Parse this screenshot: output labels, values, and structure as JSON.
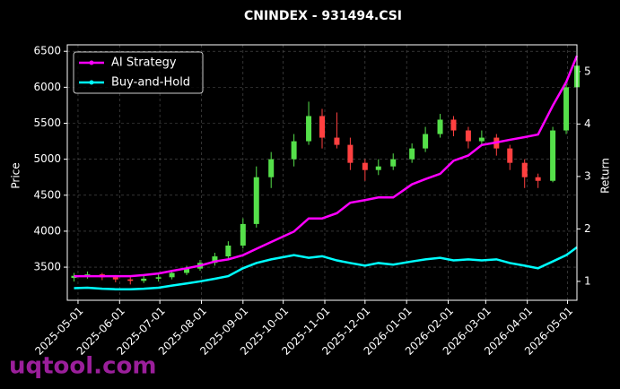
{
  "chart_data": {
    "type": "candlestick",
    "title": "CNINDEX - 931494.CSI",
    "ylabel": "Price",
    "y2label": "Return",
    "watermark": "uqtool.com",
    "x": [
      "2025-04-28",
      "2025-05-08",
      "2025-05-19",
      "2025-05-29",
      "2025-06-09",
      "2025-06-19",
      "2025-06-30",
      "2025-07-10",
      "2025-07-21",
      "2025-07-31",
      "2025-08-11",
      "2025-08-21",
      "2025-09-01",
      "2025-09-11",
      "2025-09-22",
      "2025-10-09",
      "2025-10-20",
      "2025-10-30",
      "2025-11-10",
      "2025-11-20",
      "2025-12-01",
      "2025-12-11",
      "2025-12-22",
      "2026-01-05",
      "2026-01-15",
      "2026-01-26",
      "2026-02-05",
      "2026-02-16",
      "2026-02-26",
      "2026-03-09",
      "2026-03-19",
      "2026-03-30",
      "2026-04-09",
      "2026-04-20",
      "2026-04-30",
      "2026-05-08"
    ],
    "open": [
      3350,
      3380,
      3400,
      3360,
      3330,
      3310,
      3340,
      3360,
      3420,
      3480,
      3560,
      3650,
      3800,
      4100,
      4750,
      5000,
      5250,
      5600,
      5300,
      5200,
      4950,
      4850,
      4900,
      5000,
      5150,
      5350,
      5550,
      5400,
      5250,
      5300,
      5150,
      4950,
      4750,
      4700,
      5400,
      6000
    ],
    "high": [
      3420,
      3440,
      3420,
      3390,
      3360,
      3380,
      3400,
      3450,
      3520,
      3600,
      3700,
      3860,
      4180,
      4900,
      5100,
      5350,
      5800,
      5700,
      5650,
      5300,
      5000,
      5000,
      5080,
      5220,
      5450,
      5630,
      5600,
      5450,
      5400,
      5350,
      5200,
      5000,
      4800,
      5450,
      6050,
      6400
    ],
    "low": [
      3300,
      3340,
      3320,
      3290,
      3260,
      3280,
      3300,
      3330,
      3390,
      3450,
      3520,
      3620,
      3760,
      4050,
      4600,
      4900,
      5200,
      5150,
      5150,
      4850,
      4700,
      4780,
      4850,
      4950,
      5100,
      5300,
      5320,
      5150,
      5200,
      5050,
      4850,
      4600,
      4600,
      4680,
      5350,
      5950
    ],
    "close": [
      3380,
      3400,
      3360,
      3330,
      3310,
      3340,
      3360,
      3420,
      3480,
      3560,
      3650,
      3800,
      4100,
      4750,
      5000,
      5250,
      5600,
      5300,
      5200,
      4950,
      4850,
      4900,
      5000,
      5150,
      5350,
      5550,
      5400,
      5250,
      5300,
      5150,
      4950,
      4750,
      4700,
      5400,
      6000,
      6300
    ],
    "up_color": "#55e04a",
    "down_color": "#ff4040",
    "series": [
      {
        "name": "AI Strategy",
        "color": "#ff00ff",
        "axis": "y2",
        "values": [
          1.1,
          1.1,
          1.1,
          1.1,
          1.1,
          1.12,
          1.15,
          1.2,
          1.25,
          1.3,
          1.38,
          1.42,
          1.5,
          1.62,
          1.75,
          1.95,
          2.2,
          2.2,
          2.3,
          2.5,
          2.55,
          2.6,
          2.6,
          2.85,
          2.95,
          3.05,
          3.3,
          3.4,
          3.6,
          3.65,
          3.7,
          3.75,
          3.8,
          4.35,
          4.8,
          5.3
        ]
      },
      {
        "name": "Buy-and-Hold",
        "color": "#00ffff",
        "axis": "y2",
        "values": [
          0.87,
          0.88,
          0.86,
          0.85,
          0.85,
          0.86,
          0.88,
          0.92,
          0.96,
          1.0,
          1.05,
          1.1,
          1.25,
          1.35,
          1.42,
          1.5,
          1.45,
          1.48,
          1.4,
          1.35,
          1.3,
          1.35,
          1.32,
          1.38,
          1.42,
          1.45,
          1.4,
          1.42,
          1.4,
          1.42,
          1.35,
          1.3,
          1.25,
          1.38,
          1.5,
          1.65
        ]
      }
    ],
    "xlim": [
      "2025-04-23",
      "2026-05-08"
    ],
    "xticks": [
      "2025-05-01",
      "2025-06-01",
      "2025-07-01",
      "2025-08-01",
      "2025-09-01",
      "2025-10-01",
      "2025-11-01",
      "2025-12-01",
      "2026-01-01",
      "2026-02-01",
      "2026-03-01",
      "2026-04-01",
      "2026-05-01"
    ],
    "ylim": [
      3040,
      6590
    ],
    "yticks": [
      3500,
      4000,
      4500,
      5000,
      5500,
      6000,
      6500
    ],
    "y2lim": [
      0.64,
      5.51
    ],
    "y2ticks": [
      1,
      2,
      3,
      4,
      5
    ],
    "grid": true,
    "legend": "upper left"
  }
}
